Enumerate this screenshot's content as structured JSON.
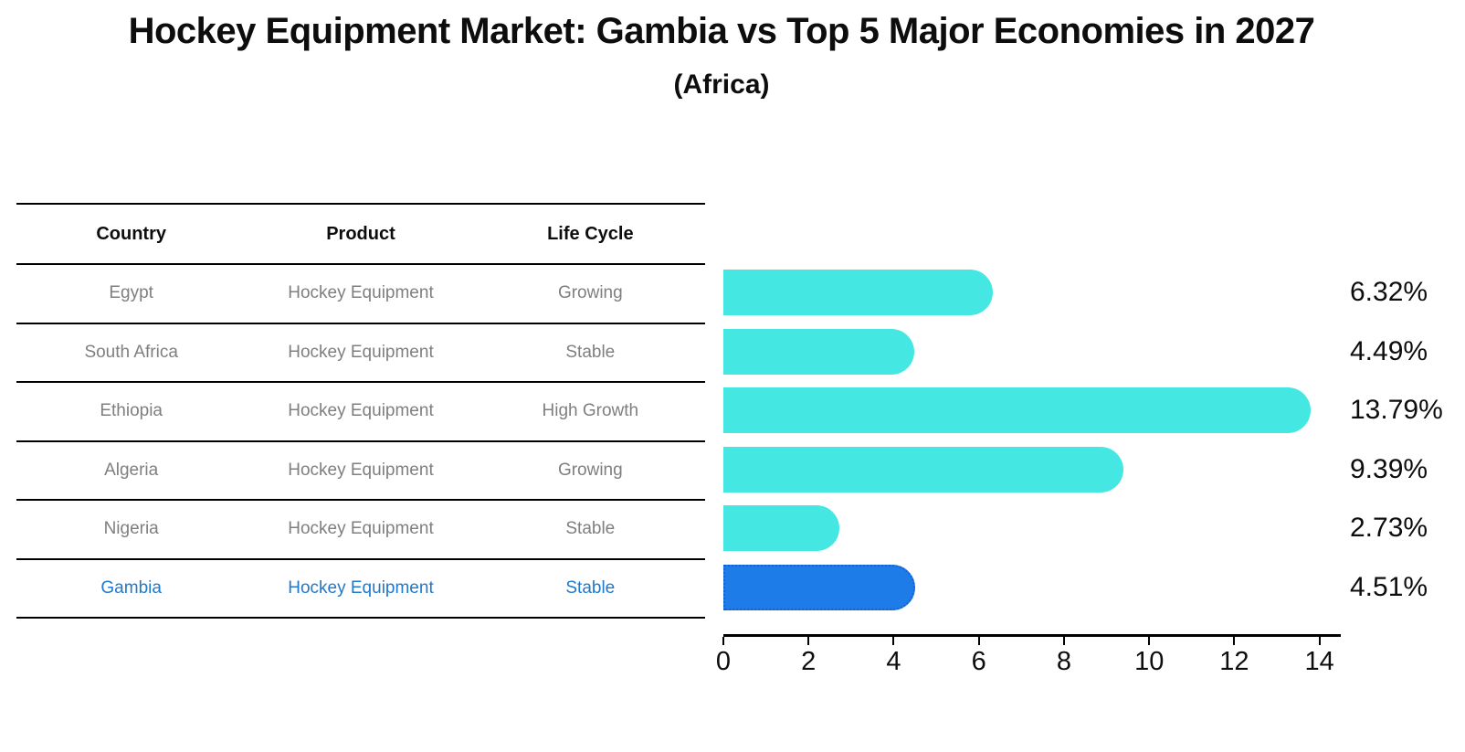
{
  "title": "Hockey Equipment Market: Gambia vs Top 5 Major Economies in 2027",
  "subtitle": "(Africa)",
  "table": {
    "headers": [
      "Country",
      "Product",
      "Life Cycle"
    ],
    "rows": [
      {
        "country": "Egypt",
        "product": "Hockey Equipment",
        "life_cycle": "Growing",
        "highlight": false
      },
      {
        "country": "South Africa",
        "product": "Hockey Equipment",
        "life_cycle": "Stable",
        "highlight": false
      },
      {
        "country": "Ethiopia",
        "product": "Hockey Equipment",
        "life_cycle": "High Growth",
        "highlight": false
      },
      {
        "country": "Algeria",
        "product": "Hockey Equipment",
        "life_cycle": "Growing",
        "highlight": false
      },
      {
        "country": "Nigeria",
        "product": "Hockey Equipment",
        "life_cycle": "Stable",
        "highlight": false
      },
      {
        "country": "Gambia",
        "product": "Hockey Equipment",
        "life_cycle": "Stable",
        "highlight": true
      }
    ]
  },
  "chart_data": {
    "type": "bar",
    "orientation": "horizontal",
    "title": "Hockey Equipment Market: Gambia vs Top 5 Major Economies in 2027",
    "subtitle": "(Africa)",
    "categories": [
      "Egypt",
      "South Africa",
      "Ethiopia",
      "Algeria",
      "Nigeria",
      "Gambia"
    ],
    "values": [
      6.32,
      4.49,
      13.79,
      9.39,
      2.73,
      4.51
    ],
    "value_labels": [
      "6.32%",
      "4.49%",
      "13.79%",
      "9.39%",
      "2.73%",
      "4.51%"
    ],
    "xlabel": "",
    "ylabel": "",
    "xlim": [
      0,
      14.5
    ],
    "xticks": [
      0,
      2,
      4,
      6,
      8,
      10,
      12,
      14
    ],
    "grid": false,
    "legend": false,
    "highlight_index": 5,
    "colors": {
      "bar": "#44e7e1",
      "highlight_bar": "#1e7ce8",
      "highlight_border": "#1461cf",
      "highlight_text": "#2079cb",
      "row_text": "#7f7f7f",
      "text": "#0d0d0d"
    }
  }
}
